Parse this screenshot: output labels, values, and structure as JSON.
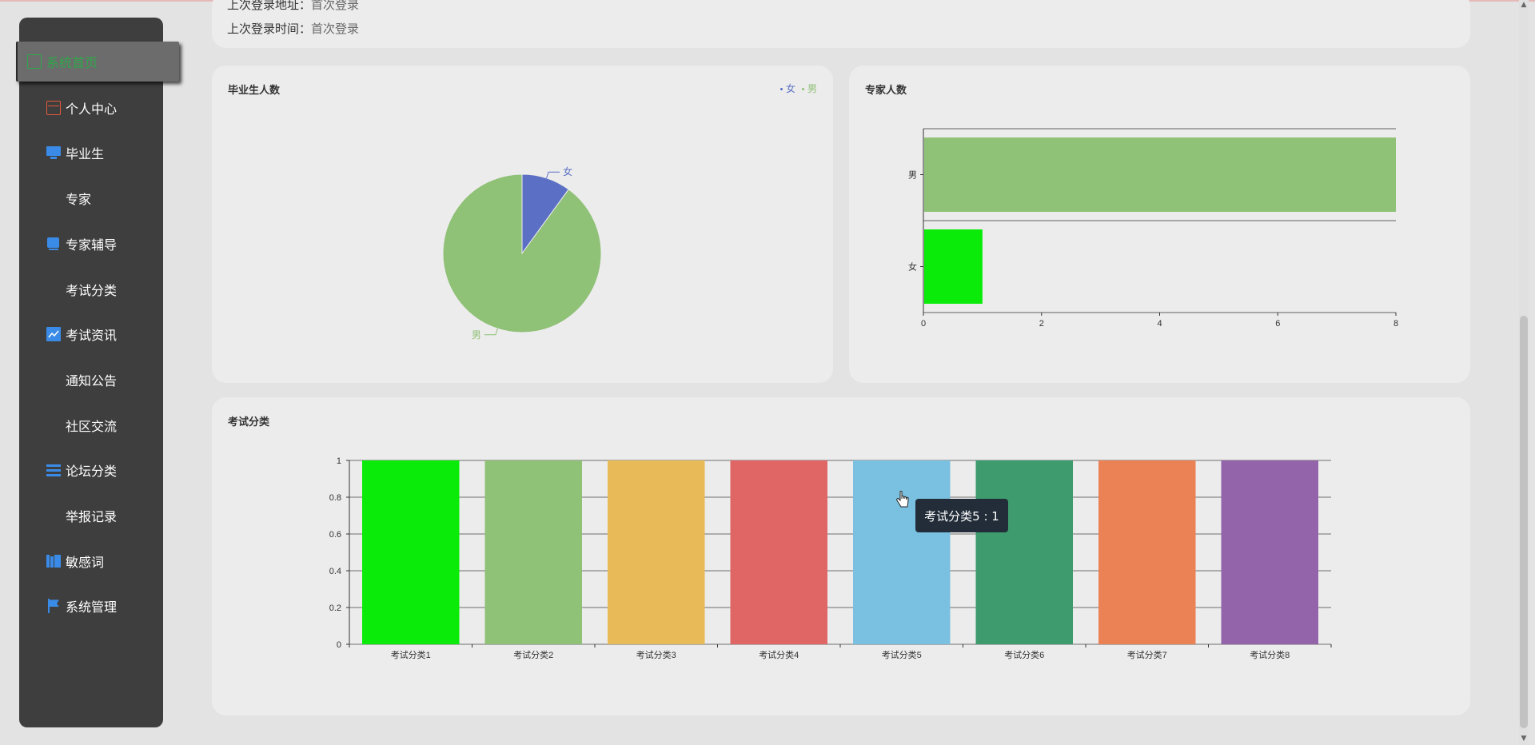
{
  "sidebar": {
    "items": [
      {
        "label": "系统首页",
        "icon": "home-icon",
        "active": true
      },
      {
        "label": "个人中心",
        "icon": "wallet-icon"
      },
      {
        "label": "毕业生",
        "icon": "monitor-icon"
      },
      {
        "label": "专家",
        "icon": "grid-icon"
      },
      {
        "label": "专家辅导",
        "icon": "book-icon"
      },
      {
        "label": "考试分类",
        "icon": "apps-icon"
      },
      {
        "label": "考试资讯",
        "icon": "chart-icon"
      },
      {
        "label": "通知公告",
        "icon": "grid-icon"
      },
      {
        "label": "社区交流",
        "icon": "grid-icon"
      },
      {
        "label": "论坛分类",
        "icon": "list-icon"
      },
      {
        "label": "举报记录",
        "icon": "grid-icon"
      },
      {
        "label": "敏感词",
        "icon": "library-icon"
      },
      {
        "label": "系统管理",
        "icon": "flag-icon"
      }
    ]
  },
  "login_info": {
    "address_label": "上次登录地址：",
    "address_value": "首次登录",
    "time_label": "上次登录时间：",
    "time_value": "首次登录"
  },
  "colors": {
    "female": "#5b6fc4",
    "male": "#8fc176",
    "bright_green": "#0aeb0a",
    "tooltip_bg": "#222d39"
  },
  "chart_data": [
    {
      "type": "pie",
      "title": "毕业生人数",
      "legend": [
        "女",
        "男"
      ],
      "legend_position": "top-right",
      "slices": [
        {
          "name": "女",
          "value": 1,
          "color": "#5b6fc4"
        },
        {
          "name": "男",
          "value": 9,
          "color": "#8fc176"
        }
      ]
    },
    {
      "type": "bar",
      "orientation": "horizontal",
      "title": "专家人数",
      "categories": [
        "男",
        "女"
      ],
      "values": [
        8,
        1
      ],
      "colors": [
        "#8fc176",
        "#0aeb0a"
      ],
      "xlim": [
        0,
        8
      ],
      "xticks": [
        0,
        2,
        4,
        6,
        8
      ],
      "grid": true
    },
    {
      "type": "bar",
      "title": "考试分类",
      "categories": [
        "考试分类1",
        "考试分类2",
        "考试分类3",
        "考试分类4",
        "考试分类5",
        "考试分类6",
        "考试分类7",
        "考试分类8"
      ],
      "values": [
        1,
        1,
        1,
        1,
        1,
        1,
        1,
        1
      ],
      "colors": [
        "#0aeb0a",
        "#8fc176",
        "#e8bb58",
        "#e06666",
        "#7ac0e0",
        "#3e9b6e",
        "#ea8256",
        "#9464ab"
      ],
      "ylim": [
        0,
        1
      ],
      "yticks": [
        "0",
        "0.2",
        "0.4",
        "0.6",
        "0.8",
        "1"
      ],
      "grid": true,
      "tooltip": "考试分类5 : 1"
    }
  ]
}
